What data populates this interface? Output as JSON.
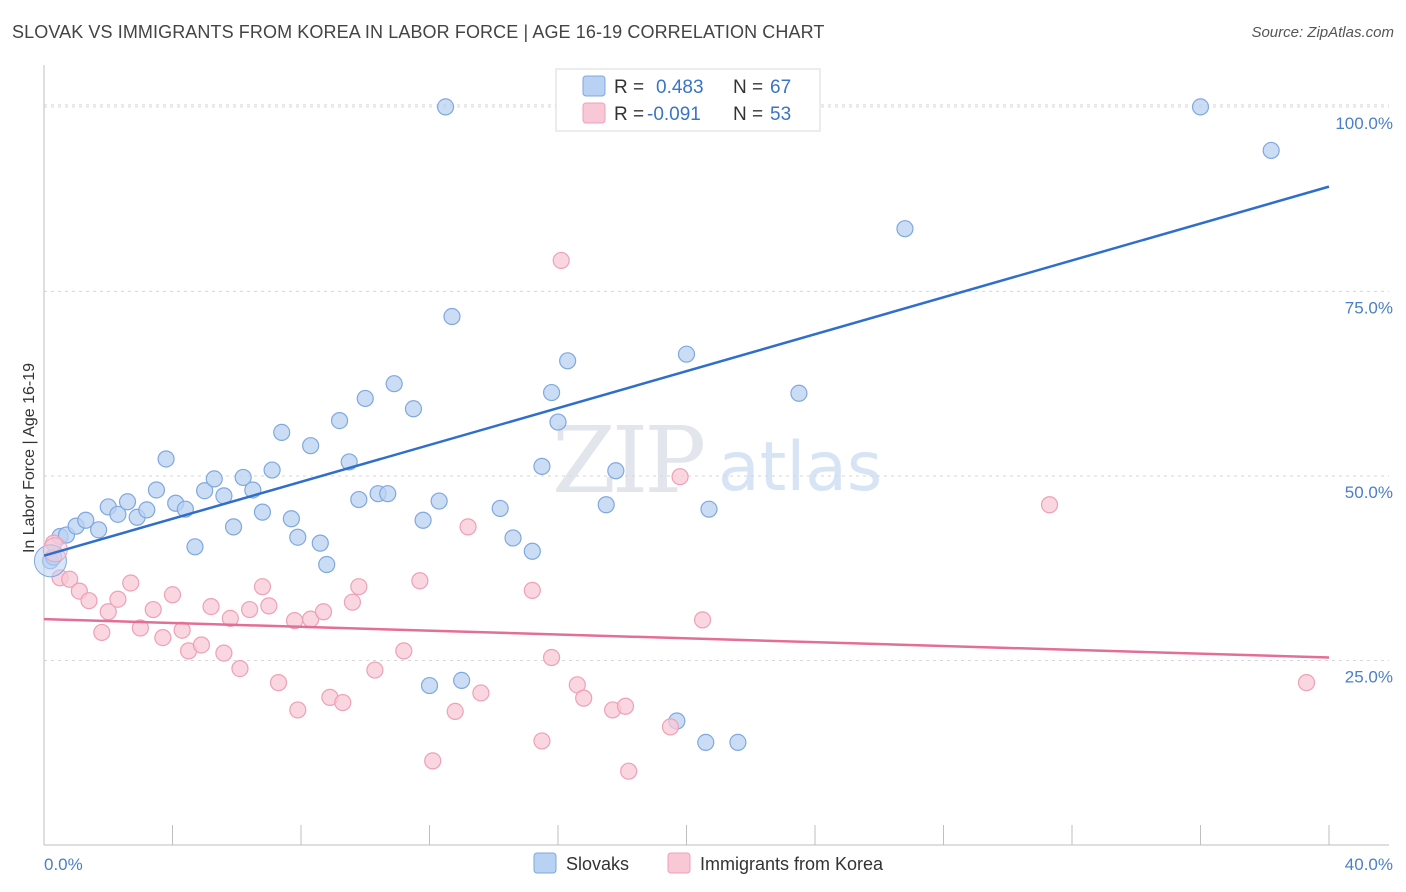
{
  "title": "SLOVAK VS IMMIGRANTS FROM KOREA IN LABOR FORCE | AGE 16-19 CORRELATION CHART",
  "source": "Source: ZipAtlas.com",
  "watermark": {
    "zip": "ZIP",
    "atlas": "atlas"
  },
  "colors": {
    "blue_fill": "#b9d1f2",
    "blue_stroke": "#7fa8df",
    "blue_line": "#2f6fcb",
    "pink_fill": "#f8c8d7",
    "pink_stroke": "#eea0b8",
    "pink_line": "#e46e96",
    "grid": "#d6d6d6",
    "tick_label": "#4a7fc9"
  },
  "legend": {
    "rows": [
      {
        "r_label": "R =",
        "r_value": "0.483",
        "n_label": "N =",
        "n_value": "67"
      },
      {
        "r_label": "R =",
        "r_value": "-0.091",
        "n_label": "N =",
        "n_value": "53"
      }
    ]
  },
  "chart_data": {
    "type": "scatter",
    "xlabel": "",
    "ylabel": "In Labor Force | Age 16-19",
    "xlim": [
      0,
      40
    ],
    "ylim": [
      0,
      105
    ],
    "x_tick_labels": [
      "0.0%",
      "40.0%"
    ],
    "y_ticks": [
      25,
      50,
      75,
      100
    ],
    "y_tick_labels": [
      "25.0%",
      "50.0%",
      "75.0%",
      "100.0%"
    ],
    "grid": "horizontal dashed",
    "legend_placement": "top-center",
    "series": [
      {
        "name": "Slovaks",
        "trend": {
          "x": [
            0,
            40
          ],
          "y": [
            39.2,
            89.2
          ]
        },
        "points": [
          [
            0.2,
            38.5
          ],
          [
            0.5,
            41.8
          ],
          [
            0.7,
            42.0
          ],
          [
            1.0,
            43.2
          ],
          [
            1.3,
            44.0
          ],
          [
            1.7,
            42.7
          ],
          [
            2.0,
            45.8
          ],
          [
            2.3,
            44.8
          ],
          [
            2.6,
            46.5
          ],
          [
            2.9,
            44.4
          ],
          [
            3.2,
            45.4
          ],
          [
            3.5,
            48.1
          ],
          [
            3.8,
            52.3
          ],
          [
            4.1,
            46.3
          ],
          [
            4.4,
            45.5
          ],
          [
            4.7,
            40.4
          ],
          [
            5.0,
            48.0
          ],
          [
            5.3,
            49.6
          ],
          [
            5.6,
            47.3
          ],
          [
            5.9,
            43.1
          ],
          [
            6.2,
            49.8
          ],
          [
            6.5,
            48.1
          ],
          [
            6.8,
            45.1
          ],
          [
            7.1,
            50.8
          ],
          [
            7.4,
            55.9
          ],
          [
            7.7,
            44.2
          ],
          [
            7.9,
            41.7
          ],
          [
            8.3,
            54.1
          ],
          [
            8.6,
            40.9
          ],
          [
            8.8,
            38.0
          ],
          [
            9.2,
            57.5
          ],
          [
            9.5,
            51.9
          ],
          [
            9.8,
            46.8
          ],
          [
            10.0,
            60.5
          ],
          [
            10.4,
            47.6
          ],
          [
            10.7,
            47.6
          ],
          [
            10.9,
            62.5
          ],
          [
            11.5,
            59.1
          ],
          [
            11.8,
            44.0
          ],
          [
            12.0,
            21.6
          ],
          [
            12.3,
            46.6
          ],
          [
            12.5,
            100.0
          ],
          [
            12.7,
            71.6
          ],
          [
            13.0,
            22.3
          ],
          [
            14.2,
            45.6
          ],
          [
            14.6,
            41.6
          ],
          [
            15.2,
            39.8
          ],
          [
            15.5,
            51.3
          ],
          [
            15.8,
            61.3
          ],
          [
            16.0,
            57.3
          ],
          [
            16.3,
            65.6
          ],
          [
            16.9,
            100.0
          ],
          [
            17.2,
            100.0
          ],
          [
            17.5,
            46.1
          ],
          [
            17.8,
            50.7
          ],
          [
            19.7,
            16.8
          ],
          [
            20.0,
            66.5
          ],
          [
            20.6,
            13.9
          ],
          [
            20.7,
            45.5
          ],
          [
            21.3,
            100.0
          ],
          [
            21.6,
            13.9
          ],
          [
            23.5,
            61.2
          ],
          [
            23.7,
            100.0
          ],
          [
            26.8,
            83.5
          ],
          [
            36.0,
            100.0
          ],
          [
            38.2,
            94.1
          ],
          [
            0.3,
            39.0
          ]
        ]
      },
      {
        "name": "Immigrants from Korea",
        "trend": {
          "x": [
            0,
            40
          ],
          "y": [
            30.6,
            25.4
          ]
        },
        "points": [
          [
            0.3,
            40.9
          ],
          [
            0.5,
            36.2
          ],
          [
            0.8,
            36.0
          ],
          [
            1.1,
            34.4
          ],
          [
            1.4,
            33.1
          ],
          [
            1.8,
            28.8
          ],
          [
            2.0,
            31.6
          ],
          [
            2.3,
            33.3
          ],
          [
            2.7,
            35.5
          ],
          [
            3.0,
            29.4
          ],
          [
            3.4,
            31.9
          ],
          [
            3.7,
            28.1
          ],
          [
            4.0,
            33.9
          ],
          [
            4.3,
            29.1
          ],
          [
            4.5,
            26.3
          ],
          [
            4.9,
            27.1
          ],
          [
            5.2,
            32.3
          ],
          [
            5.6,
            26.0
          ],
          [
            5.8,
            30.7
          ],
          [
            6.1,
            23.9
          ],
          [
            6.4,
            31.9
          ],
          [
            6.8,
            35.0
          ],
          [
            7.0,
            32.4
          ],
          [
            7.3,
            22.0
          ],
          [
            7.8,
            30.4
          ],
          [
            7.9,
            18.3
          ],
          [
            8.3,
            30.6
          ],
          [
            8.7,
            31.6
          ],
          [
            8.9,
            20.0
          ],
          [
            9.3,
            19.3
          ],
          [
            9.6,
            32.9
          ],
          [
            9.8,
            35.0
          ],
          [
            10.3,
            23.7
          ],
          [
            11.2,
            26.3
          ],
          [
            11.7,
            35.8
          ],
          [
            12.1,
            11.4
          ],
          [
            12.8,
            18.1
          ],
          [
            13.2,
            43.1
          ],
          [
            13.6,
            20.6
          ],
          [
            15.2,
            34.5
          ],
          [
            15.5,
            14.1
          ],
          [
            15.8,
            25.4
          ],
          [
            16.1,
            79.2
          ],
          [
            16.6,
            21.7
          ],
          [
            16.8,
            19.9
          ],
          [
            17.7,
            18.3
          ],
          [
            18.1,
            18.8
          ],
          [
            18.2,
            10.0
          ],
          [
            19.5,
            16.0
          ],
          [
            19.8,
            49.9
          ],
          [
            20.5,
            30.5
          ],
          [
            31.3,
            46.1
          ],
          [
            39.3,
            22.0
          ]
        ]
      }
    ]
  }
}
